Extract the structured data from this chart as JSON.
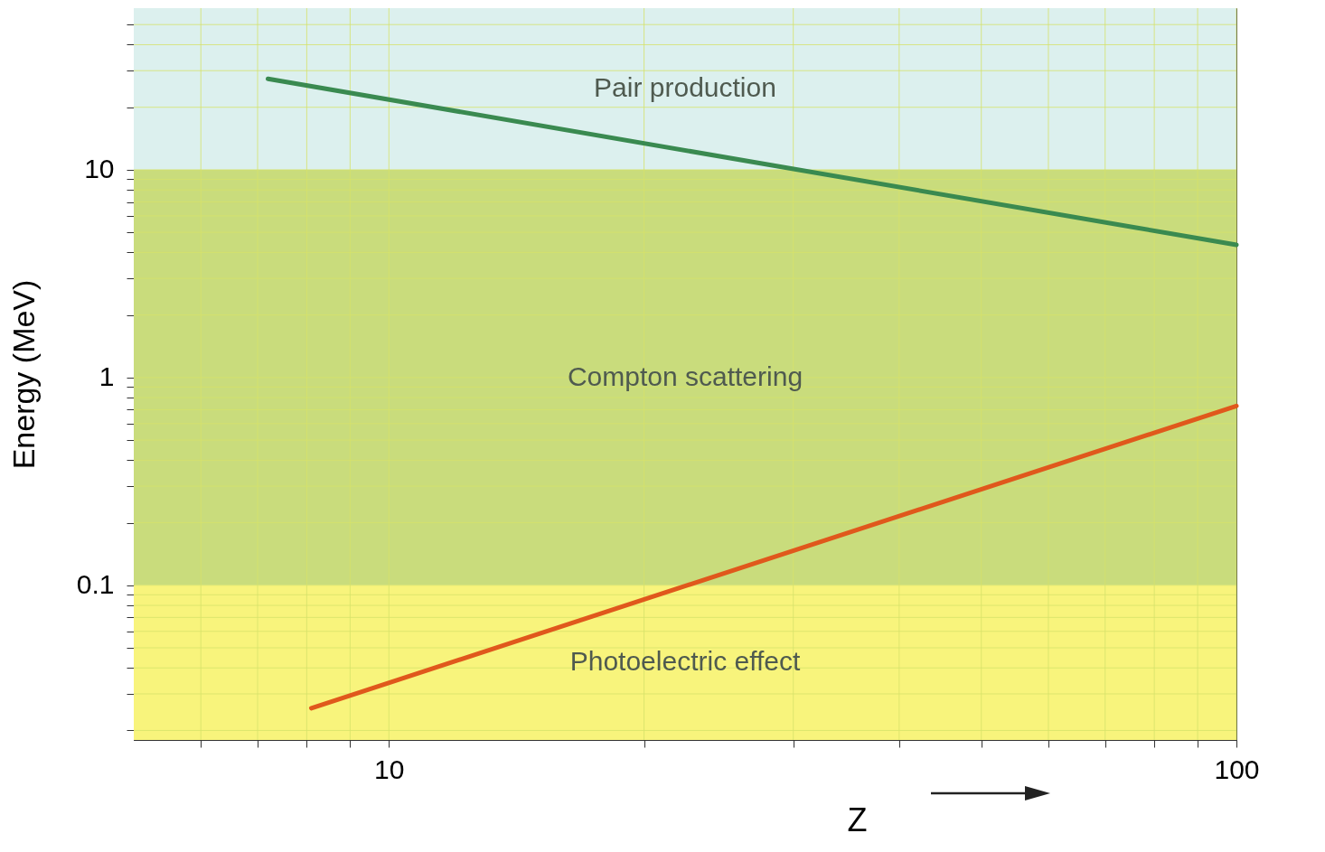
{
  "chart_data": {
    "type": "line",
    "xlabel": "Z",
    "ylabel": "Energy (MeV)",
    "log": "xy",
    "xlim": [
      5,
      100
    ],
    "ylim": [
      0.018,
      60
    ],
    "xticks": [
      {
        "value": 6,
        "label": null
      },
      {
        "value": 7,
        "label": null
      },
      {
        "value": 8,
        "label": null
      },
      {
        "value": 9,
        "label": null
      },
      10,
      {
        "value": 20,
        "label": null
      },
      {
        "value": 30,
        "label": null
      },
      {
        "value": 40,
        "label": null
      },
      {
        "value": 50,
        "label": null
      },
      {
        "value": 60,
        "label": null
      },
      {
        "value": 70,
        "label": null
      },
      {
        "value": 80,
        "label": null
      },
      {
        "value": 90,
        "label": null
      },
      100
    ],
    "yticks": [
      {
        "value": 0.02,
        "label": null
      },
      {
        "value": 0.03,
        "label": null
      },
      {
        "value": 0.04,
        "label": null
      },
      {
        "value": 0.05,
        "label": null
      },
      {
        "value": 0.06,
        "label": null
      },
      {
        "value": 0.07,
        "label": null
      },
      {
        "value": 0.08,
        "label": null
      },
      {
        "value": 0.09,
        "label": null
      },
      0.1,
      {
        "value": 0.2,
        "label": null
      },
      {
        "value": 0.3,
        "label": null
      },
      {
        "value": 0.4,
        "label": null
      },
      {
        "value": 0.5,
        "label": null
      },
      {
        "value": 0.6,
        "label": null
      },
      {
        "value": 0.7,
        "label": null
      },
      {
        "value": 0.8,
        "label": null
      },
      {
        "value": 0.9,
        "label": null
      },
      1,
      {
        "value": 2,
        "label": null
      },
      {
        "value": 3,
        "label": null
      },
      {
        "value": 4,
        "label": null
      },
      {
        "value": 5,
        "label": null
      },
      {
        "value": 6,
        "label": null
      },
      {
        "value": 7,
        "label": null
      },
      {
        "value": 8,
        "label": null
      },
      {
        "value": 9,
        "label": null
      },
      10,
      {
        "value": 20,
        "label": null
      },
      {
        "value": 30,
        "label": null
      },
      {
        "value": 40,
        "label": null
      },
      {
        "value": 50,
        "label": null
      }
    ],
    "grid": true,
    "bands": [
      {
        "axis": "y",
        "from": 10,
        "to": 60,
        "label": "Pair  production",
        "color": "#dcf0ee"
      },
      {
        "axis": "y",
        "from": 0.1,
        "to": 10,
        "label": "Compton  scattering",
        "color": "#c9dc7c"
      },
      {
        "axis": "y",
        "from": 0.018,
        "to": 0.1,
        "label": "Photoelectric   effect",
        "color": "#f8f47c"
      }
    ],
    "series": [
      {
        "color": "#3a8a50",
        "x": [
          7.2,
          100
        ],
        "values": [
          27.4,
          4.35
        ]
      },
      {
        "color": "#e0581c",
        "x": [
          8.1,
          100
        ],
        "values": [
          0.0256,
          0.73
        ]
      }
    ]
  }
}
